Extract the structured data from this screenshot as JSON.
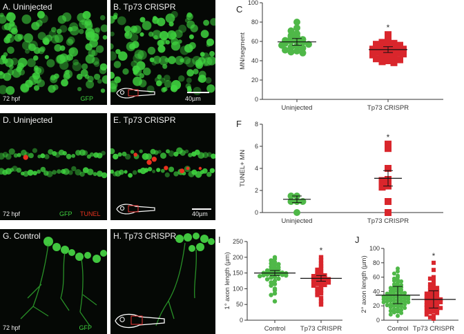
{
  "panels": {
    "A": {
      "label": "A. Uninjected",
      "time": "72 hpf",
      "stain": "GFP"
    },
    "B": {
      "label": "B. Tp73 CRISPR",
      "scale": "40µm"
    },
    "D": {
      "label": "D. Uninjected",
      "time": "72 hpf",
      "stain_gfp": "GFP",
      "stain_tunel": "TUNEL"
    },
    "E": {
      "label": "E. Tp73 CRISPR",
      "scale": "40µm"
    },
    "G": {
      "label": "G. Control",
      "time": "72 hpf",
      "stain": "GFP"
    },
    "H": {
      "label": "H. Tp73 CRISPR"
    }
  },
  "colors": {
    "control": "#4fb848",
    "crispr": "#d9262c",
    "gfp": "#3fd23f",
    "tunel": "#e8321e",
    "background": "#050805"
  },
  "chart_data": [
    {
      "id": "C",
      "letter": "C",
      "type": "scatter",
      "ylabel": "MN/segment",
      "ylim": [
        0,
        100
      ],
      "yticks": [
        0,
        20,
        40,
        60,
        80,
        100
      ],
      "categories": [
        "Uninjected",
        "Tp73 CRISPR"
      ],
      "significance": "*",
      "series": [
        {
          "values": [
            80,
            74,
            71,
            68,
            66,
            65,
            64,
            62,
            61,
            60,
            60,
            59,
            58,
            57,
            56,
            55,
            54,
            53,
            51,
            50,
            49,
            48
          ],
          "mean": 59.5,
          "error": 3.5
        },
        {
          "values": [
            67,
            63,
            60,
            59,
            58,
            57,
            56,
            55,
            55,
            54,
            53,
            53,
            52,
            52,
            51,
            51,
            50,
            50,
            49,
            49,
            48,
            48,
            47,
            46,
            45,
            44,
            43,
            42,
            41,
            40,
            39,
            38
          ],
          "mean": 51.5,
          "error": 3
        }
      ]
    },
    {
      "id": "F",
      "letter": "F",
      "type": "scatter",
      "ylabel": "TUNEL+ MN",
      "ylim": [
        0,
        8
      ],
      "yticks": [
        0,
        2,
        4,
        6,
        8
      ],
      "categories": [
        "Uninjected",
        "Tp73 CRISPR"
      ],
      "significance": "*",
      "series": [
        {
          "values": [
            1.5,
            1.5,
            1,
            1,
            1,
            0
          ],
          "mean": 1.2,
          "error": 0.3
        },
        {
          "values": [
            6.2,
            5.8,
            4,
            3,
            2.9,
            2.5,
            2.4,
            2.3,
            1,
            0
          ],
          "mean": 3.1,
          "error": 0.7
        }
      ]
    },
    {
      "id": "I",
      "letter": "I",
      "type": "scatter",
      "ylabel": "1° axon length (µm)",
      "ylim": [
        0,
        250
      ],
      "yticks": [
        0,
        50,
        100,
        150,
        200,
        250
      ],
      "categories": [
        "Control",
        "Tp73 CRISPR"
      ],
      "significance": "*",
      "series": [
        {
          "values": [
            200,
            195,
            190,
            185,
            180,
            178,
            175,
            170,
            168,
            165,
            162,
            160,
            158,
            156,
            155,
            154,
            152,
            151,
            150,
            149,
            148,
            147,
            146,
            145,
            144,
            143,
            142,
            140,
            138,
            135,
            132,
            130,
            125,
            120,
            115,
            110,
            100,
            95,
            85,
            80,
            60
          ],
          "mean": 150,
          "error": 8
        },
        {
          "values": [
            200,
            190,
            180,
            172,
            165,
            160,
            155,
            150,
            148,
            145,
            142,
            140,
            138,
            136,
            134,
            132,
            130,
            128,
            126,
            124,
            122,
            120,
            118,
            115,
            112,
            110,
            105,
            100,
            95,
            90,
            85,
            80,
            70,
            60,
            50
          ],
          "mean": 133,
          "error": 9
        }
      ]
    },
    {
      "id": "J",
      "letter": "J",
      "type": "scatter",
      "ylabel": "2° axon length (µm)",
      "ylim": [
        0,
        100
      ],
      "yticks": [
        0,
        20,
        40,
        60,
        80,
        100
      ],
      "categories": [
        "Control",
        "Tp73 CRISPR"
      ],
      "significance": "*",
      "series": [
        {
          "values": [
            72,
            68,
            65,
            62,
            60,
            58,
            56,
            55,
            54,
            52,
            50,
            49,
            48,
            47,
            46,
            45,
            44,
            43,
            42,
            41,
            40,
            40,
            39,
            38,
            38,
            37,
            36,
            36,
            35,
            35,
            34,
            34,
            33,
            33,
            32,
            32,
            31,
            31,
            30,
            30,
            29,
            29,
            28,
            28,
            27,
            27,
            26,
            26,
            25,
            25,
            24,
            24,
            23,
            22,
            22,
            21,
            20,
            20,
            19,
            18,
            17,
            16,
            15,
            14,
            13,
            12,
            11,
            10,
            8,
            6
          ],
          "mean": 35,
          "error": 12
        },
        {
          "values": [
            80,
            70,
            60,
            58,
            55,
            52,
            50,
            48,
            46,
            45,
            44,
            42,
            41,
            40,
            39,
            38,
            37,
            36,
            35,
            34,
            33,
            32,
            31,
            30,
            30,
            29,
            28,
            27,
            26,
            25,
            25,
            24,
            23,
            22,
            21,
            20,
            20,
            19,
            18,
            17,
            16,
            15,
            14,
            13,
            12,
            11,
            10,
            8,
            6,
            4,
            2
          ],
          "mean": 29,
          "error": 12
        }
      ]
    }
  ]
}
